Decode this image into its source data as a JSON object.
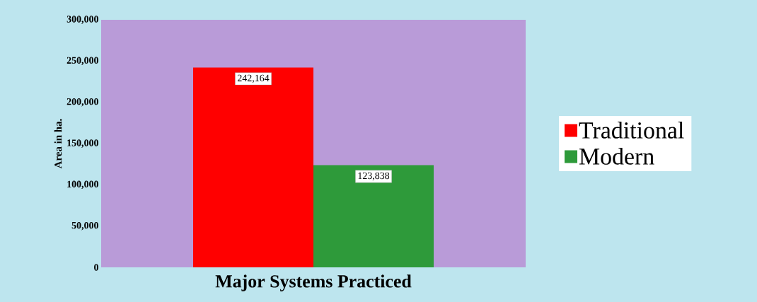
{
  "chart_data": {
    "type": "bar",
    "xlabel": "Major Systems Practiced",
    "ylabel": "Area in ha.",
    "categories": [
      null
    ],
    "series": [
      {
        "name": "Traditional",
        "color": "#ff0000",
        "values": [
          242164
        ],
        "value_labels": [
          "242,164"
        ]
      },
      {
        "name": "Modern",
        "color": "#2e9a3a",
        "values": [
          123838
        ],
        "value_labels": [
          "123,838"
        ]
      }
    ],
    "ylim": [
      0,
      300000
    ],
    "yticks": [
      {
        "value": 0,
        "label": "0"
      },
      {
        "value": 50000,
        "label": "50,000"
      },
      {
        "value": 100000,
        "label": "100,000"
      },
      {
        "value": 150000,
        "label": "150,000"
      },
      {
        "value": 200000,
        "label": "200,000"
      },
      {
        "value": 250000,
        "label": "250,000"
      },
      {
        "value": 300000,
        "label": "300,000"
      }
    ],
    "legend": "right",
    "grid": false
  }
}
